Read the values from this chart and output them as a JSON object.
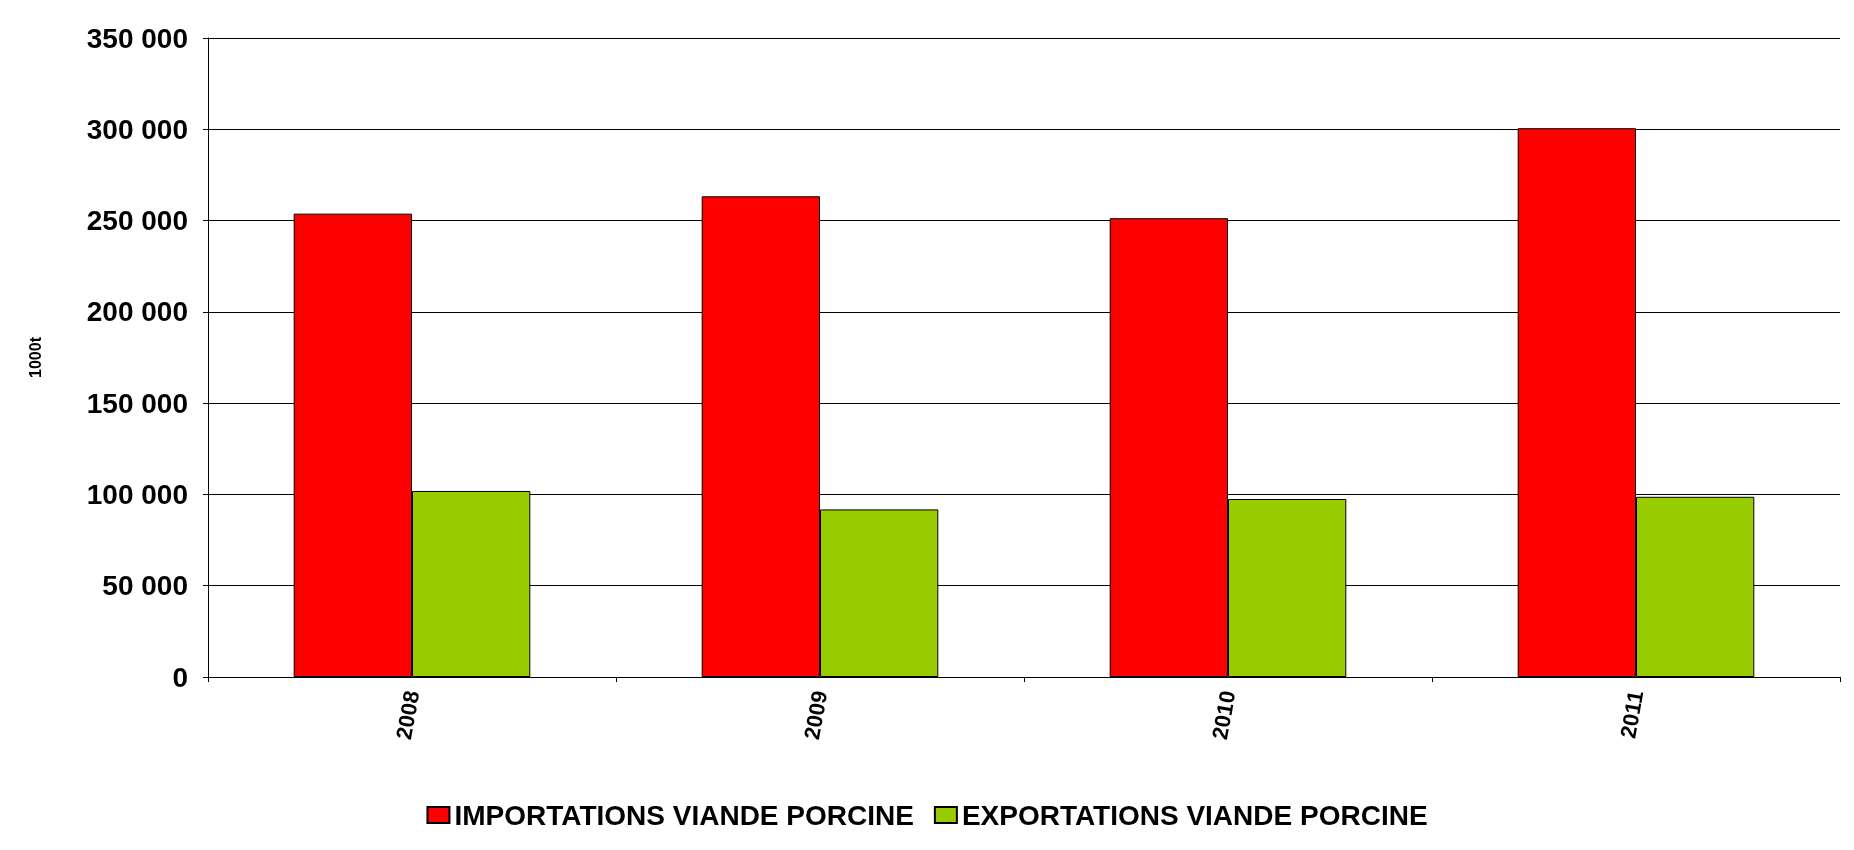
{
  "chart_data": {
    "type": "bar",
    "ylabel": "1000t",
    "categories": [
      "2008",
      "2009",
      "2010",
      "2011"
    ],
    "series": [
      {
        "name": "IMPORTATIONS VIANDE PORCINE",
        "color": "#ff0000",
        "values": [
          253800,
          263300,
          251300,
          300600
        ]
      },
      {
        "name": "EXPORTATIONS VIANDE PORCINE",
        "color": "#99cc00",
        "values": [
          101900,
          91800,
          97500,
          98700
        ]
      }
    ],
    "ylim": [
      0,
      350000
    ],
    "yticks": [
      {
        "value": 0,
        "label": "0"
      },
      {
        "value": 50000,
        "label": "50 000"
      },
      {
        "value": 100000,
        "label": "100 000"
      },
      {
        "value": 150000,
        "label": "150 000"
      },
      {
        "value": 200000,
        "label": "200 000"
      },
      {
        "value": 250000,
        "label": "250 000"
      },
      {
        "value": 300000,
        "label": "300 000"
      },
      {
        "value": 350000,
        "label": "350 000"
      }
    ],
    "grid": "y",
    "legend": "bottom"
  }
}
